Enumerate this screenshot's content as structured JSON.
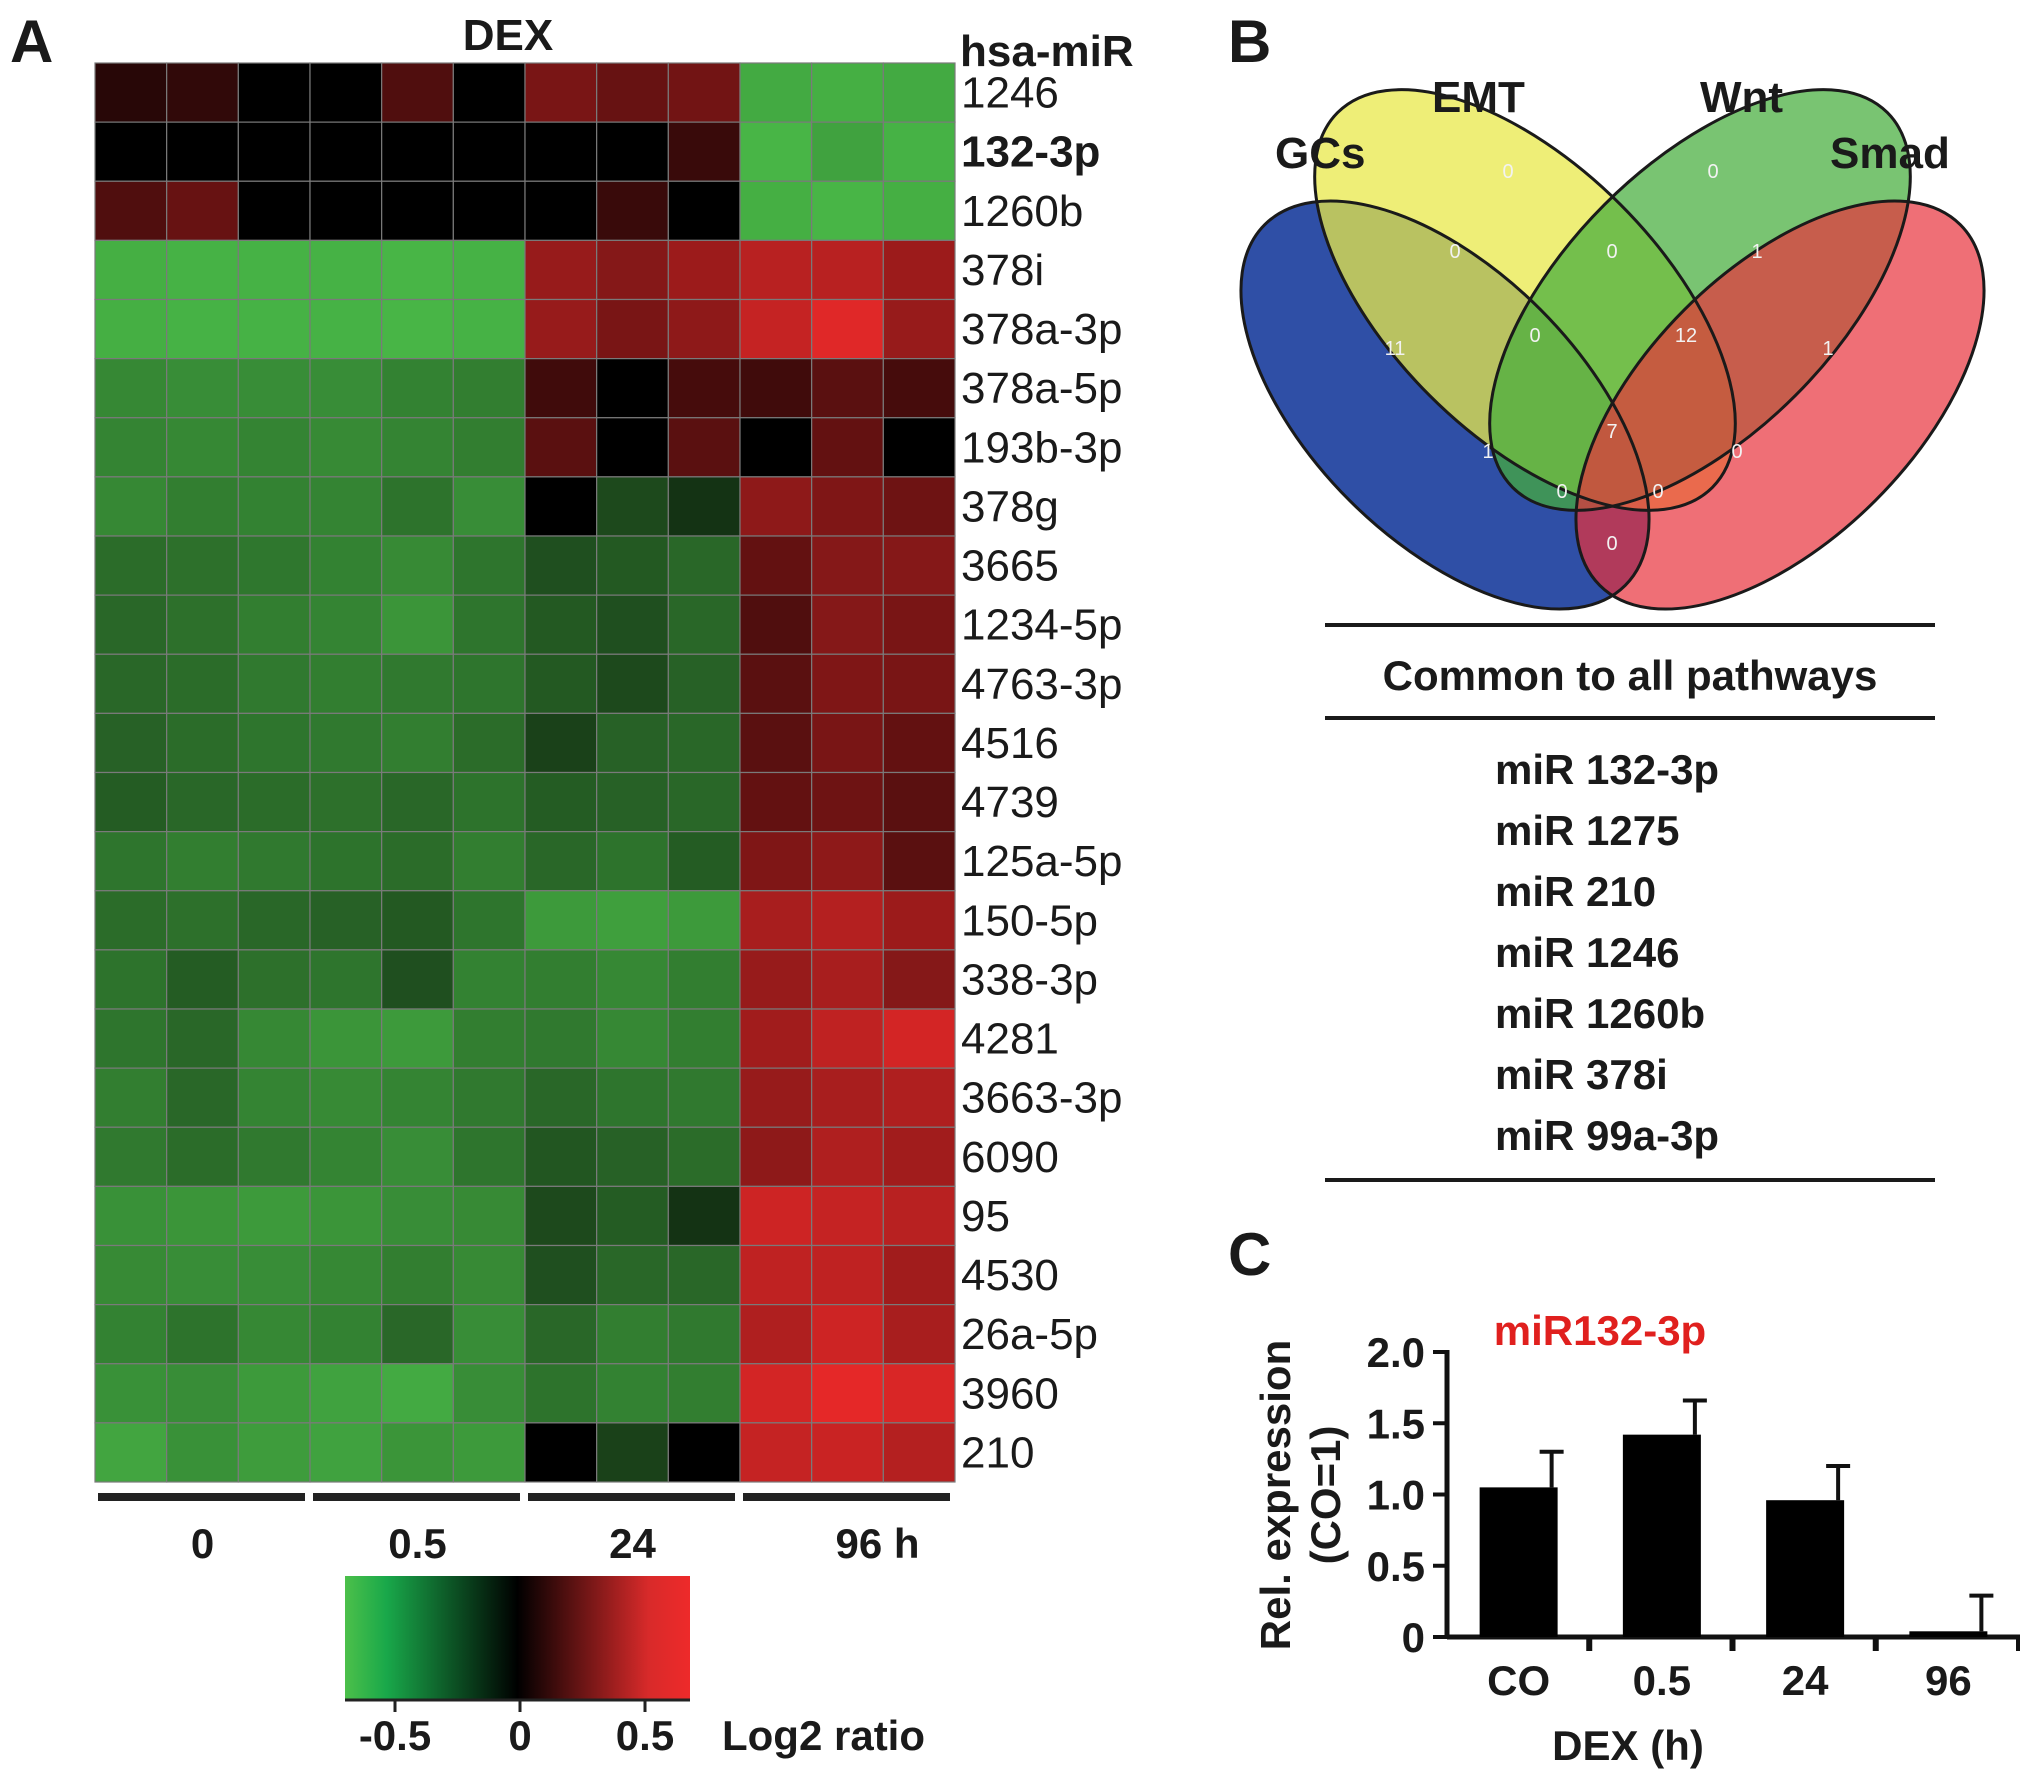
{
  "panel_labels": {
    "a": "A",
    "b": "B",
    "c": "C"
  },
  "chart_data": [
    {
      "type": "heatmap",
      "title": "DEX",
      "row_header": "hsa-miR",
      "rows": [
        "1246",
        "132-3p",
        "1260b",
        "378i",
        "378a-3p",
        "378a-5p",
        "193b-3p",
        "378g",
        "3665",
        "1234-5p",
        "4763-3p",
        "4516",
        "4739",
        "125a-5p",
        "150-5p",
        "338-3p",
        "4281",
        "3663-3p",
        "6090",
        "95",
        "4530",
        "26a-5p",
        "3960",
        "210"
      ],
      "highlight_row": "132-3p",
      "highlight_color": "#e0201e",
      "groups": [
        {
          "label": "0",
          "columns": 3
        },
        {
          "label": "0.5",
          "columns": 3
        },
        {
          "label": "24",
          "columns": 3
        },
        {
          "label": "96 h",
          "columns": 3
        }
      ],
      "values": [
        [
          0.02,
          0.03,
          0.0,
          0.0,
          0.08,
          0.0,
          0.18,
          0.13,
          0.16,
          -0.55,
          -0.58,
          -0.55
        ],
        [
          0.0,
          0.0,
          0.0,
          0.0,
          0.0,
          0.0,
          0.0,
          0.0,
          0.04,
          -0.62,
          -0.5,
          -0.6
        ],
        [
          0.08,
          0.13,
          0.0,
          0.0,
          0.0,
          0.0,
          0.0,
          0.04,
          0.0,
          -0.58,
          -0.62,
          -0.58
        ],
        [
          -0.58,
          -0.6,
          -0.6,
          -0.6,
          -0.62,
          -0.6,
          0.28,
          0.22,
          0.3,
          0.42,
          0.42,
          0.3
        ],
        [
          -0.58,
          -0.6,
          -0.6,
          -0.6,
          -0.62,
          -0.6,
          0.28,
          0.18,
          0.25,
          0.48,
          0.62,
          0.28
        ],
        [
          -0.35,
          -0.38,
          -0.38,
          -0.38,
          -0.32,
          -0.3,
          0.05,
          0.0,
          0.06,
          0.05,
          0.1,
          0.06
        ],
        [
          -0.33,
          -0.35,
          -0.33,
          -0.36,
          -0.33,
          -0.3,
          0.1,
          0.0,
          0.1,
          0.0,
          0.12,
          0.0
        ],
        [
          -0.35,
          -0.3,
          -0.32,
          -0.33,
          -0.25,
          -0.38,
          0.0,
          -0.1,
          -0.05,
          0.25,
          0.2,
          0.15
        ],
        [
          -0.22,
          -0.24,
          -0.27,
          -0.32,
          -0.36,
          -0.26,
          -0.12,
          -0.15,
          -0.2,
          0.12,
          0.22,
          0.22
        ],
        [
          -0.2,
          -0.24,
          -0.3,
          -0.33,
          -0.42,
          -0.26,
          -0.15,
          -0.12,
          -0.2,
          0.08,
          0.22,
          0.18
        ],
        [
          -0.2,
          -0.22,
          -0.28,
          -0.3,
          -0.28,
          -0.26,
          -0.15,
          -0.1,
          -0.18,
          0.1,
          0.2,
          0.18
        ],
        [
          -0.18,
          -0.22,
          -0.26,
          -0.28,
          -0.3,
          -0.22,
          -0.08,
          -0.18,
          -0.2,
          0.1,
          0.18,
          0.12
        ],
        [
          -0.16,
          -0.2,
          -0.22,
          -0.24,
          -0.2,
          -0.25,
          -0.16,
          -0.18,
          -0.2,
          0.12,
          0.15,
          0.1
        ],
        [
          -0.26,
          -0.3,
          -0.28,
          -0.25,
          -0.22,
          -0.3,
          -0.2,
          -0.25,
          -0.16,
          0.2,
          0.25,
          0.1
        ],
        [
          -0.22,
          -0.24,
          -0.2,
          -0.18,
          -0.15,
          -0.26,
          -0.45,
          -0.48,
          -0.45,
          0.35,
          0.4,
          0.3
        ],
        [
          -0.25,
          -0.16,
          -0.24,
          -0.26,
          -0.12,
          -0.32,
          -0.3,
          -0.35,
          -0.3,
          0.28,
          0.35,
          0.22
        ],
        [
          -0.26,
          -0.2,
          -0.35,
          -0.42,
          -0.45,
          -0.3,
          -0.28,
          -0.35,
          -0.3,
          0.32,
          0.45,
          0.55
        ],
        [
          -0.3,
          -0.2,
          -0.33,
          -0.36,
          -0.33,
          -0.28,
          -0.2,
          -0.26,
          -0.28,
          0.28,
          0.35,
          0.38
        ],
        [
          -0.28,
          -0.22,
          -0.28,
          -0.33,
          -0.38,
          -0.26,
          -0.14,
          -0.18,
          -0.22,
          0.25,
          0.38,
          0.32
        ],
        [
          -0.4,
          -0.42,
          -0.45,
          -0.42,
          -0.38,
          -0.36,
          -0.1,
          -0.16,
          -0.05,
          0.52,
          0.48,
          0.42
        ],
        [
          -0.36,
          -0.38,
          -0.38,
          -0.35,
          -0.3,
          -0.36,
          -0.12,
          -0.2,
          -0.2,
          0.45,
          0.45,
          0.32
        ],
        [
          -0.32,
          -0.25,
          -0.35,
          -0.32,
          -0.2,
          -0.38,
          -0.2,
          -0.3,
          -0.28,
          0.38,
          0.52,
          0.35
        ],
        [
          -0.4,
          -0.38,
          -0.45,
          -0.5,
          -0.55,
          -0.38,
          -0.25,
          -0.32,
          -0.3,
          0.55,
          0.65,
          0.58
        ],
        [
          -0.52,
          -0.4,
          -0.46,
          -0.5,
          -0.42,
          -0.45,
          0.0,
          -0.08,
          0.0,
          0.48,
          0.5,
          0.4
        ]
      ],
      "colorbar": {
        "label": "Log2 ratio",
        "ticks": [
          "-0.5",
          "0",
          "0.5"
        ],
        "min": -0.7,
        "max": 0.7,
        "low_color": "#4cc04a",
        "mid_color": "#000000",
        "high_color": "#ee2a2a"
      }
    },
    {
      "type": "venn",
      "sets": [
        "GCs",
        "EMT",
        "Wnt",
        "Smad"
      ],
      "set_colors": [
        "#2f4fa6",
        "#e8e84a",
        "#45ad3c",
        "#e8323c"
      ],
      "regions": [
        {
          "sets": [
            "GCs"
          ],
          "value": "11"
        },
        {
          "sets": [
            "EMT"
          ],
          "value": "0"
        },
        {
          "sets": [
            "Wnt"
          ],
          "value": "0"
        },
        {
          "sets": [
            "Smad"
          ],
          "value": "1"
        },
        {
          "sets": [
            "GCs",
            "EMT"
          ],
          "value": "0"
        },
        {
          "sets": [
            "EMT",
            "Wnt"
          ],
          "value": "0"
        },
        {
          "sets": [
            "Wnt",
            "Smad"
          ],
          "value": "1"
        },
        {
          "sets": [
            "GCs",
            "EMT",
            "Wnt"
          ],
          "value": "0"
        },
        {
          "sets": [
            "EMT",
            "Wnt",
            "Smad"
          ],
          "value": "12"
        },
        {
          "sets": [
            "GCs",
            "EMT",
            "Wnt",
            "Smad"
          ],
          "value": "7"
        },
        {
          "sets": [
            "GCs",
            "Wnt"
          ],
          "value": "1"
        },
        {
          "sets": [
            "EMT",
            "Smad"
          ],
          "value": "0"
        },
        {
          "sets": [
            "GCs",
            "Wnt",
            "Smad"
          ],
          "value": "0"
        },
        {
          "sets": [
            "GCs",
            "EMT",
            "Smad"
          ],
          "value": "0"
        },
        {
          "sets": [
            "GCs",
            "Smad"
          ],
          "value": "0"
        }
      ],
      "table": {
        "header": "Common to all pathways",
        "items": [
          "miR 132-3p",
          "miR 1275",
          "miR 210",
          "miR 1246",
          "miR 1260b",
          "miR 378i",
          "miR 99a-3p"
        ],
        "highlight_item": "miR 132-3p",
        "highlight_color": "#e0201e"
      }
    },
    {
      "type": "bar",
      "title": "miR132-3p",
      "title_color": "#e0201e",
      "categories": [
        "CO",
        "0.5",
        "24",
        "96"
      ],
      "values": [
        1.05,
        1.42,
        0.96,
        0.04
      ],
      "errors": [
        0.25,
        0.24,
        0.24,
        0.25
      ],
      "ylabel_line1": "Rel. expression",
      "ylabel_line2": "(CO=1)",
      "xlabel": "DEX (h)",
      "ylim": [
        0,
        2.0
      ],
      "yticks": [
        "0",
        "0.5",
        "1.0",
        "1.5",
        "2.0"
      ],
      "bar_color": "#000000"
    }
  ]
}
